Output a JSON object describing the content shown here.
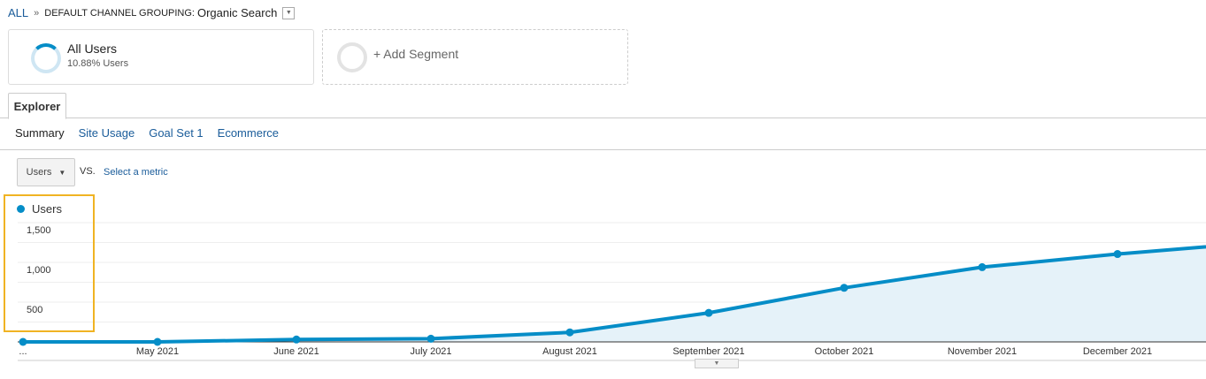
{
  "breadcrumb": {
    "root": "ALL",
    "separator": "»",
    "dimension": "DEFAULT CHANNEL GROUPING:",
    "value": "Organic Search"
  },
  "segments": {
    "active": {
      "name": "All Users",
      "detail": "10.88% Users"
    },
    "add_label": "+ Add Segment"
  },
  "tabs": {
    "explorer": "Explorer"
  },
  "subtabs": [
    {
      "label": "Summary",
      "active": true
    },
    {
      "label": "Site Usage"
    },
    {
      "label": "Goal Set 1"
    },
    {
      "label": "Ecommerce"
    }
  ],
  "metric": {
    "selected": "Users",
    "vs": "VS.",
    "select_other": "Select a metric"
  },
  "colors": {
    "series": "#058dc7",
    "fill": "#e5f2f9",
    "highlight": "#f0b323",
    "link": "#1a5c9a"
  },
  "chart_data": {
    "type": "area",
    "legend": [
      "Users"
    ],
    "y_ticks": [
      "1,500",
      "1,000",
      "500"
    ],
    "ylim": [
      0,
      1500
    ],
    "grid": true,
    "categories": [
      "...",
      "May 2021",
      "June 2021",
      "July 2021",
      "August 2021",
      "September 2021",
      "October 2021",
      "November 2021",
      "December 2021",
      ""
    ],
    "series": [
      {
        "name": "Users",
        "values": [
          0,
          0,
          30,
          40,
          120,
          365,
          680,
          940,
          1105,
          1245
        ]
      }
    ]
  }
}
